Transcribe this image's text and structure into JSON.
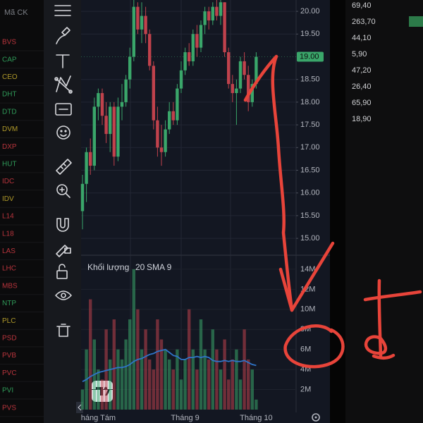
{
  "tickers_header": "Mã CK",
  "tickers": [
    {
      "symbol": "BVS",
      "color": "#b8343c"
    },
    {
      "symbol": "CAP",
      "color": "#2f9a58"
    },
    {
      "symbol": "CEO",
      "color": "#b09a2a"
    },
    {
      "symbol": "DHT",
      "color": "#2f9a58"
    },
    {
      "symbol": "DTD",
      "color": "#2f9a58"
    },
    {
      "symbol": "DVM",
      "color": "#b09a2a"
    },
    {
      "symbol": "DXP",
      "color": "#b8343c"
    },
    {
      "symbol": "HUT",
      "color": "#2f9a58"
    },
    {
      "symbol": "IDC",
      "color": "#b8343c"
    },
    {
      "symbol": "IDV",
      "color": "#b09a2a"
    },
    {
      "symbol": "L14",
      "color": "#b8343c"
    },
    {
      "symbol": "L18",
      "color": "#b8343c"
    },
    {
      "symbol": "LAS",
      "color": "#b8343c"
    },
    {
      "symbol": "LHC",
      "color": "#b8343c"
    },
    {
      "symbol": "MBS",
      "color": "#b8343c"
    },
    {
      "symbol": "NTP",
      "color": "#2f9a58"
    },
    {
      "symbol": "PLC",
      "color": "#b09a2a"
    },
    {
      "symbol": "PSD",
      "color": "#b8343c"
    },
    {
      "symbol": "PVB",
      "color": "#b8343c"
    },
    {
      "symbol": "PVC",
      "color": "#b8343c"
    },
    {
      "symbol": "PVI",
      "color": "#2f9a58"
    },
    {
      "symbol": "PVS",
      "color": "#b8343c"
    }
  ],
  "prices": [
    "69,40",
    "263,70",
    "44,10",
    "5,90",
    "47,20",
    "26,40",
    "65,90",
    "18,90"
  ],
  "chart_data": {
    "type": "candlestick",
    "categories": [
      null,
      null,
      null,
      null,
      "háng Tám",
      null,
      null,
      null,
      null,
      null,
      null,
      null,
      null,
      null,
      null,
      null,
      null,
      null,
      null,
      null,
      null,
      null,
      null,
      null,
      null,
      null,
      "Tháng 9",
      null,
      null,
      null,
      null,
      null,
      null,
      null,
      null,
      null,
      null,
      null,
      null,
      null,
      null,
      null,
      null,
      null,
      "Tháng 10"
    ],
    "open": [
      15.6,
      16.2,
      16.9,
      16.6,
      17.9,
      18.2,
      17.7,
      17.3,
      17.9,
      16.8,
      17.9,
      18.0,
      18.5,
      19.0,
      20.1,
      19.6,
      19.9,
      19.5,
      18.8,
      17.6,
      17.0,
      16.9,
      17.4,
      17.8,
      17.6,
      18.3,
      18.7,
      19.1,
      18.9,
      19.5,
      19.2,
      19.7,
      20.0,
      19.8,
      20.1,
      19.9,
      20.2,
      19.1,
      18.4,
      18.2,
      18.3,
      18.9,
      18.6,
      18.0,
      18.4
    ],
    "high": [
      16.4,
      17.0,
      17.2,
      18.1,
      18.3,
      18.3,
      18.0,
      18.0,
      18.0,
      18.1,
      18.4,
      18.6,
      19.2,
      20.3,
      20.2,
      20.2,
      20.1,
      19.6,
      18.9,
      17.9,
      17.5,
      17.6,
      18.0,
      18.0,
      18.4,
      18.9,
      19.2,
      19.3,
      19.6,
      19.7,
      19.8,
      20.1,
      20.1,
      20.2,
      20.3,
      20.3,
      20.2,
      19.2,
      18.6,
      18.5,
      19.0,
      19.1,
      18.8,
      18.5,
      19.1
    ],
    "low": [
      15.2,
      15.8,
      16.4,
      16.5,
      17.6,
      17.5,
      17.1,
      16.9,
      16.6,
      16.7,
      17.6,
      17.9,
      18.3,
      18.9,
      19.5,
      19.3,
      19.3,
      18.7,
      17.4,
      16.8,
      16.6,
      16.8,
      17.3,
      17.5,
      17.5,
      18.2,
      18.6,
      18.8,
      18.8,
      19.0,
      19.1,
      19.5,
      19.6,
      19.7,
      19.8,
      19.7,
      19.0,
      18.3,
      18.0,
      17.5,
      18.2,
      18.5,
      17.8,
      17.9,
      18.3
    ],
    "close": [
      16.2,
      16.9,
      16.6,
      17.9,
      18.2,
      17.7,
      17.3,
      17.9,
      16.8,
      17.9,
      18.0,
      18.5,
      19.0,
      20.1,
      19.6,
      19.9,
      19.5,
      18.8,
      17.6,
      17.0,
      16.9,
      17.4,
      17.8,
      17.6,
      18.3,
      18.7,
      19.1,
      18.9,
      19.5,
      19.2,
      19.7,
      20.0,
      19.8,
      20.1,
      19.9,
      20.2,
      19.1,
      18.4,
      18.2,
      18.3,
      18.9,
      18.6,
      18.0,
      18.4,
      19.0
    ],
    "up_color": "#3aa66a",
    "down_color": "#c0424c",
    "ylim": [
      14.66,
      20.25
    ],
    "yticks": [
      {
        "value": 15,
        "label": "15.00"
      },
      {
        "value": 15.5,
        "label": "15.50"
      },
      {
        "value": 16,
        "label": "16.00"
      },
      {
        "value": 16.5,
        "label": "16.50"
      },
      {
        "value": 17,
        "label": "17.00"
      },
      {
        "value": 17.5,
        "label": "17.50"
      },
      {
        "value": 18,
        "label": "18.00"
      },
      {
        "value": 18.5,
        "label": "18.50"
      },
      {
        "value": 19.5,
        "label": "19.50"
      },
      {
        "value": 20,
        "label": "20.00"
      }
    ],
    "last_price": {
      "value": 19,
      "label": "19.00",
      "color": "#3aa66a"
    },
    "grid": true,
    "volume_title": "Khối lượng",
    "volume_length": "20",
    "sma_title": "SMA 9",
    "volume": [
      2,
      6,
      11,
      7,
      4,
      3,
      8,
      5,
      9,
      6,
      5,
      7,
      9,
      14,
      10,
      6,
      8,
      5,
      4,
      9,
      7,
      6,
      5,
      4,
      6,
      3,
      5,
      10,
      6,
      4,
      9,
      6,
      5,
      8,
      6,
      4,
      7,
      3,
      5,
      6,
      3,
      8,
      5,
      4,
      1
    ],
    "volume_ylim": [
      0,
      15.4
    ],
    "volume_yticks": [
      {
        "value": 2,
        "label": "2M"
      },
      {
        "value": 4,
        "label": "4M"
      },
      {
        "value": 6,
        "label": "6M"
      },
      {
        "value": 8,
        "label": "8M"
      },
      {
        "value": 10,
        "label": "10M"
      },
      {
        "value": 12,
        "label": "12M"
      },
      {
        "value": 14,
        "label": "14M"
      }
    ],
    "sma_color": "#2f74c8",
    "sma": [
      2.8,
      3.0,
      3.3,
      3.5,
      3.7,
      3.8,
      3.9,
      4.0,
      4.1,
      4.2,
      4.2,
      4.3,
      4.5,
      4.8,
      5.0,
      5.1,
      5.3,
      5.5,
      5.6,
      5.8,
      5.9,
      6.0,
      5.7,
      5.4,
      5.3,
      5.0,
      5.0,
      5.2,
      5.2,
      5.3,
      5.2,
      5.3,
      5.2,
      4.9,
      4.8,
      4.8,
      4.9,
      4.8,
      4.9,
      4.8,
      4.8,
      4.9,
      4.7,
      4.5,
      4.4
    ]
  }
}
